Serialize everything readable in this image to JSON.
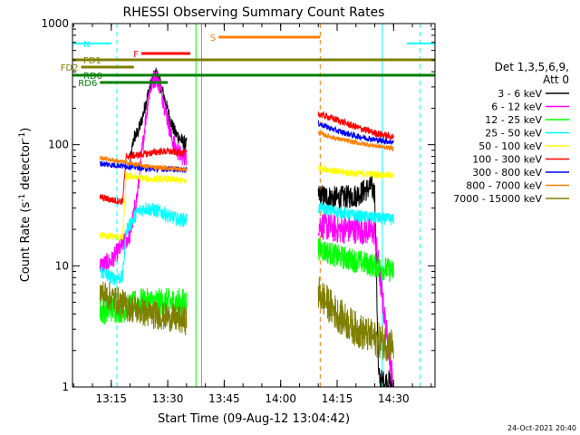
{
  "chart_data": {
    "type": "line",
    "title": "RHESSI Observing Summary Count Rates",
    "xlabel": "Start Time (09-Aug-12 13:04:42)",
    "ylabel_main": "Count Rate (s",
    "ylabel_sup": "-1",
    "ylabel_mid": " detector",
    "ylabel_end": ")",
    "y_scale": "log",
    "ylim": [
      1,
      1000
    ],
    "x_range": [
      "13:04:42",
      "14:41:00"
    ],
    "x_ticks": [
      {
        "t": "13:15",
        "label": "13:15"
      },
      {
        "t": "13:30",
        "label": "13:30"
      },
      {
        "t": "13:45",
        "label": "13:45"
      },
      {
        "t": "14:00",
        "label": "14:00"
      },
      {
        "t": "14:15",
        "label": "14:15"
      },
      {
        "t": "14:30",
        "label": "14:30"
      }
    ],
    "y_ticks": [
      {
        "v": 1,
        "label": "1"
      },
      {
        "v": 10,
        "label": "10"
      },
      {
        "v": 100,
        "label": "100"
      },
      {
        "v": 1000,
        "label": "1000"
      }
    ],
    "legend_placement": "right",
    "legend_header": [
      "Det 1,3,5,6,9,",
      "Att 0"
    ],
    "series": [
      {
        "name": "3 - 6 keV",
        "color": "#000000",
        "segments": [
          {
            "pts": [
              [
                "13:20",
                70
              ],
              [
                "13:21",
                115
              ],
              [
                "13:22",
                125
              ],
              [
                "13:23",
                155
              ],
              [
                "13:24",
                210
              ],
              [
                "13:25",
                280
              ],
              [
                "13:26",
                345
              ],
              [
                "13:27",
                390
              ],
              [
                "13:28",
                320
              ],
              [
                "13:29",
                250
              ],
              [
                "13:30",
                190
              ],
              [
                "13:31",
                150
              ],
              [
                "13:32",
                125
              ],
              [
                "13:33",
                115
              ],
              [
                "13:34",
                105
              ],
              [
                "13:35",
                100
              ]
            ],
            "noise": 0.06
          },
          {
            "pts": [
              [
                "14:10",
                38
              ],
              [
                "14:15",
                36
              ],
              [
                "14:20",
                38
              ],
              [
                "14:24",
                45
              ],
              [
                "14:25",
                40
              ],
              [
                "14:26",
                1.2
              ],
              [
                "14:27",
                1.1
              ],
              [
                "14:29",
                1.1
              ],
              [
                "14:30",
                1
              ]
            ],
            "noise": 0.1
          }
        ]
      },
      {
        "name": "6 - 12 keV",
        "color": "#ff00ff",
        "segments": [
          {
            "pts": [
              [
                "13:12",
                10
              ],
              [
                "13:15",
                11
              ],
              [
                "13:18",
                15
              ],
              [
                "13:20",
                18
              ],
              [
                "13:21",
                27
              ],
              [
                "13:22",
                40
              ],
              [
                "13:23",
                80
              ],
              [
                "13:24",
                150
              ],
              [
                "13:25",
                260
              ],
              [
                "13:26",
                340
              ],
              [
                "13:27",
                360
              ],
              [
                "13:28",
                300
              ],
              [
                "13:29",
                220
              ],
              [
                "13:30",
                160
              ],
              [
                "13:31",
                115
              ],
              [
                "13:32",
                95
              ],
              [
                "13:33",
                85
              ],
              [
                "13:34",
                80
              ],
              [
                "13:35",
                80
              ]
            ],
            "noise": 0.08
          },
          {
            "pts": [
              [
                "14:10",
                22
              ],
              [
                "14:15",
                20
              ],
              [
                "14:20",
                20
              ],
              [
                "14:25",
                19
              ],
              [
                "14:26",
                10
              ],
              [
                "14:28",
                3
              ],
              [
                "14:30",
                1
              ]
            ],
            "noise": 0.12
          }
        ]
      },
      {
        "name": "12 - 25 keV",
        "color": "#00ff00",
        "segments": [
          {
            "pts": [
              [
                "13:12",
                4.2
              ],
              [
                "13:15",
                4.5
              ],
              [
                "13:18",
                4.4
              ],
              [
                "13:20",
                4.5
              ],
              [
                "13:22",
                5
              ],
              [
                "13:25",
                5
              ],
              [
                "13:30",
                5
              ],
              [
                "13:35",
                5
              ]
            ],
            "noise": 0.12
          },
          {
            "pts": [
              [
                "14:10",
                14
              ],
              [
                "14:15",
                12
              ],
              [
                "14:20",
                11
              ],
              [
                "14:25",
                10
              ],
              [
                "14:30",
                9
              ]
            ],
            "noise": 0.1
          }
        ]
      },
      {
        "name": "25 - 50 keV",
        "color": "#00ffff",
        "segments": [
          {
            "pts": [
              [
                "13:12",
                9
              ],
              [
                "13:15",
                8
              ],
              [
                "13:18",
                8
              ],
              [
                "13:19",
                20
              ],
              [
                "13:20",
                22
              ],
              [
                "13:22",
                28
              ],
              [
                "13:24",
                30
              ],
              [
                "13:26",
                29
              ],
              [
                "13:28",
                28
              ],
              [
                "13:30",
                26
              ],
              [
                "13:33",
                24
              ],
              [
                "13:35",
                24
              ]
            ],
            "noise": 0.06
          },
          {
            "pts": [
              [
                "14:10",
                30
              ],
              [
                "14:15",
                28
              ],
              [
                "14:20",
                26
              ],
              [
                "14:25",
                25
              ],
              [
                "14:30",
                24
              ]
            ],
            "noise": 0.05
          }
        ]
      },
      {
        "name": "50 - 100 keV",
        "color": "#ffff00",
        "segments": [
          {
            "pts": [
              [
                "13:12",
                18
              ],
              [
                "13:15",
                17.5
              ],
              [
                "13:18",
                17
              ],
              [
                "13:19",
                55
              ],
              [
                "13:22",
                54
              ],
              [
                "13:25",
                52
              ],
              [
                "13:30",
                52
              ],
              [
                "13:35",
                50
              ]
            ],
            "noise": 0.03
          },
          {
            "pts": [
              [
                "14:10",
                65
              ],
              [
                "14:15",
                60
              ],
              [
                "14:20",
                58
              ],
              [
                "14:25",
                57
              ],
              [
                "14:30",
                56
              ]
            ],
            "noise": 0.03
          }
        ]
      },
      {
        "name": "100 - 300 keV",
        "color": "#ff0000",
        "segments": [
          {
            "pts": [
              [
                "13:12",
                37
              ],
              [
                "13:15",
                35
              ],
              [
                "13:18",
                34
              ],
              [
                "13:19",
                80
              ],
              [
                "13:22",
                82
              ],
              [
                "13:25",
                85
              ],
              [
                "13:28",
                88
              ],
              [
                "13:30",
                88
              ],
              [
                "13:35",
                85
              ]
            ],
            "noise": 0.03
          },
          {
            "pts": [
              [
                "14:10",
                180
              ],
              [
                "14:15",
                160
              ],
              [
                "14:20",
                140
              ],
              [
                "14:25",
                125
              ],
              [
                "14:30",
                115
              ]
            ],
            "noise": 0.03
          }
        ]
      },
      {
        "name": "300 - 800 keV",
        "color": "#0000ff",
        "segments": [
          {
            "pts": [
              [
                "13:12",
                70
              ],
              [
                "13:15",
                68
              ],
              [
                "13:18",
                67
              ],
              [
                "13:20",
                66
              ],
              [
                "13:22",
                65
              ],
              [
                "13:25",
                63
              ],
              [
                "13:30",
                63
              ],
              [
                "13:35",
                62
              ]
            ],
            "noise": 0.025
          },
          {
            "pts": [
              [
                "14:10",
                150
              ],
              [
                "14:15",
                130
              ],
              [
                "14:20",
                118
              ],
              [
                "14:25",
                110
              ],
              [
                "14:30",
                105
              ]
            ],
            "noise": 0.025
          }
        ]
      },
      {
        "name": "800 - 7000 keV",
        "color": "#ff7f00",
        "segments": [
          {
            "pts": [
              [
                "13:12",
                78
              ],
              [
                "13:15",
                75
              ],
              [
                "13:18",
                72
              ],
              [
                "13:20",
                70
              ],
              [
                "13:25",
                66
              ],
              [
                "13:30",
                64
              ],
              [
                "13:35",
                62
              ]
            ],
            "noise": 0.02
          },
          {
            "pts": [
              [
                "14:10",
                125
              ],
              [
                "14:15",
                112
              ],
              [
                "14:20",
                104
              ],
              [
                "14:25",
                98
              ],
              [
                "14:30",
                93
              ]
            ],
            "noise": 0.02
          }
        ]
      },
      {
        "name": "7000 - 15000 keV",
        "color": "#7f7f00",
        "segments": [
          {
            "pts": [
              [
                "13:12",
                6
              ],
              [
                "13:15",
                5.5
              ],
              [
                "13:20",
                4.5
              ],
              [
                "13:25",
                4
              ],
              [
                "13:30",
                3.8
              ],
              [
                "13:35",
                3.5
              ]
            ],
            "noise": 0.12
          },
          {
            "pts": [
              [
                "14:10",
                6
              ],
              [
                "14:15",
                4
              ],
              [
                "14:20",
                3
              ],
              [
                "14:25",
                2.5
              ],
              [
                "14:30",
                2.2
              ]
            ],
            "noise": 0.15
          }
        ]
      }
    ],
    "flag_bars": [
      {
        "label": "N",
        "color": "#00ffff",
        "ranges": [
          [
            "13:04:42",
            "13:15"
          ],
          [
            "14:33:30",
            "14:41"
          ]
        ]
      },
      {
        "label": "F",
        "color": "#ff0000",
        "ranges": [
          [
            "13:23",
            "13:36"
          ]
        ]
      },
      {
        "label": "S",
        "color": "#ff7f00",
        "ranges": [
          [
            "13:43:30",
            "14:10:30"
          ]
        ]
      },
      {
        "label": "FD1",
        "color": "#7f7f00",
        "ranges": [
          [
            "13:04:42",
            "14:41"
          ]
        ]
      },
      {
        "label": "FD2",
        "color": "#7f7f00",
        "ranges": [
          [
            "13:07",
            "13:21"
          ]
        ]
      },
      {
        "label": "RD0",
        "color": "#007f00",
        "ranges": [
          [
            "13:04:42",
            "14:41"
          ]
        ]
      },
      {
        "label": "RD6",
        "color": "#007f00",
        "ranges": [
          [
            "13:12",
            "13:30"
          ]
        ]
      }
    ],
    "vertical_markers": [
      {
        "t": "13:04:42",
        "color": "#00ffff",
        "dashed": false
      },
      {
        "t": "13:16:30",
        "color": "#00ffff",
        "dashed": true
      },
      {
        "t": "13:37:30",
        "color": "#00ff00",
        "dashed": false
      },
      {
        "t": "13:39",
        "color": "#ff7f00",
        "dashed": false
      },
      {
        "t": "14:10:30",
        "color": "#ff7f00",
        "dashed": true
      },
      {
        "t": "14:27",
        "color": "#00ffff",
        "dashed": false
      },
      {
        "t": "14:37",
        "color": "#00ffff",
        "dashed": true
      }
    ]
  },
  "footer": {
    "date_stamp": "24-Oct-2021 20:40"
  },
  "colors": {
    "background": "#ffffff",
    "axes": "#000000"
  }
}
